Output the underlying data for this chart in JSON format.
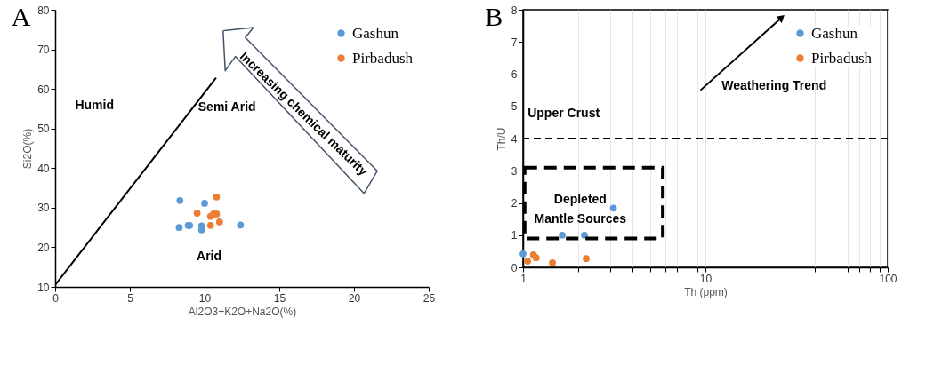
{
  "chart_data": [
    {
      "type": "scatter",
      "title": "A",
      "xlabel": "Al2O3+K2O+Na2O(%)",
      "ylabel": "Si2O(%)",
      "xlim": [
        0,
        25
      ],
      "xticks": [
        0,
        5,
        10,
        15,
        20,
        25
      ],
      "ylim": [
        10,
        80
      ],
      "yticks": [
        10,
        20,
        30,
        40,
        50,
        60,
        70,
        80
      ],
      "grid": false,
      "legend": "top right",
      "marker": "circle",
      "series": [
        {
          "name": "Gashun",
          "color": "#5b9bd5",
          "x": [
            8.35,
            10.0,
            8.3,
            8.9,
            9.0,
            9.8,
            9.8,
            12.4
          ],
          "values": [
            31.8,
            31.1,
            25.0,
            25.5,
            25.5,
            25.4,
            24.4,
            25.6
          ]
        },
        {
          "name": "Pirbadush",
          "color": "#ed7d31",
          "x": [
            10.8,
            9.5,
            10.4,
            10.6,
            10.8,
            10.4,
            11.0
          ],
          "values": [
            32.7,
            28.6,
            27.8,
            28.4,
            28.4,
            25.5,
            26.4
          ]
        },
        {
          "type": "line",
          "color": "#000000",
          "marker": "none",
          "x": [
            0,
            10.77
          ],
          "values": [
            10.5,
            62.8
          ]
        }
      ],
      "annotations": [
        "Humid",
        "Semi Arid",
        "Arid",
        "Increasing  chemical maturity"
      ]
    },
    {
      "type": "scatter",
      "title": "B",
      "xlabel": "Th (ppm)",
      "ylabel": "Th/U",
      "log": "x",
      "xlim": [
        1,
        100
      ],
      "xticks": [
        1,
        {
          "value": 2,
          "label": null
        },
        {
          "value": 3,
          "label": null
        },
        {
          "value": 4,
          "label": null
        },
        {
          "value": 5,
          "label": null
        },
        {
          "value": 6,
          "label": null
        },
        {
          "value": 7,
          "label": null
        },
        {
          "value": 8,
          "label": null
        },
        {
          "value": 9,
          "label": null
        },
        10,
        {
          "value": 20,
          "label": null
        },
        {
          "value": 30,
          "label": null
        },
        {
          "value": 40,
          "label": null
        },
        {
          "value": 50,
          "label": null
        },
        {
          "value": 60,
          "label": null
        },
        {
          "value": 70,
          "label": null
        },
        {
          "value": 80,
          "label": null
        },
        {
          "value": 90,
          "label": null
        },
        100
      ],
      "ylim": [
        0,
        8
      ],
      "yticks": [
        0,
        1,
        2,
        3,
        4,
        5,
        6,
        7,
        8
      ],
      "grid": "x",
      "legend": "top right",
      "marker": "circle",
      "series": [
        {
          "name": "Gashun",
          "color": "#5b9bd5",
          "x": [
            1.0,
            1.64,
            2.17,
            3.13
          ],
          "values": [
            0.42,
            1.0,
            1.0,
            1.84
          ]
        },
        {
          "name": "Pirbadush",
          "color": "#ed7d31",
          "x": [
            1.06,
            1.14,
            1.18,
            1.45,
            2.22
          ],
          "values": [
            0.19,
            0.39,
            0.3,
            0.14,
            0.27
          ]
        }
      ],
      "ref_lines": [
        {
          "axis": "y",
          "value": 4,
          "label": "Upper Crust",
          "color": "#000000",
          "line_style": "dashed"
        }
      ],
      "annotations": [
        "Weathering Trend",
        "Depleted\nMantle Sources"
      ]
    }
  ]
}
